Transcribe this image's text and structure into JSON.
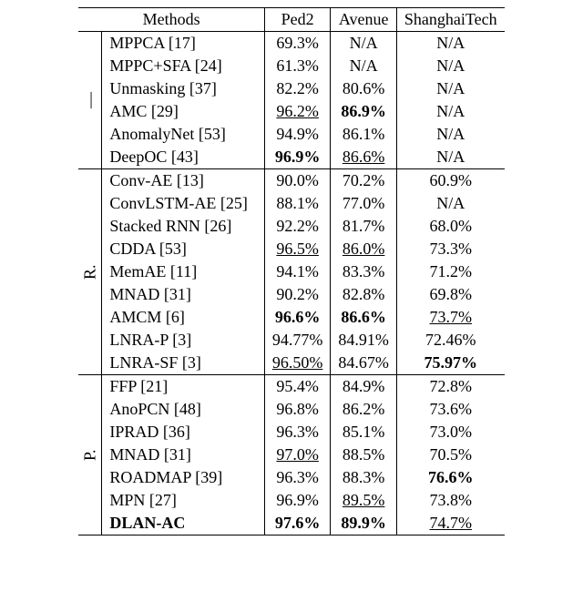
{
  "header": {
    "methods": "Methods",
    "ped2": "Ped2",
    "avenue": "Avenue",
    "shanghaitech": "ShanghaiTech"
  },
  "groups": [
    {
      "label": "—",
      "rows": [
        {
          "method": "MPPCA [17]",
          "ped2": "69.3%",
          "avenue": "N/A",
          "shanghaitech": "N/A"
        },
        {
          "method": "MPPC+SFA [24]",
          "ped2": "61.3%",
          "avenue": "N/A",
          "shanghaitech": "N/A"
        },
        {
          "method": "Unmasking [37]",
          "ped2": "82.2%",
          "avenue": "80.6%",
          "shanghaitech": "N/A"
        },
        {
          "method": "AMC [29]",
          "ped2": "96.2%",
          "ped2_underline": true,
          "avenue": "86.9%",
          "avenue_bold": true,
          "shanghaitech": "N/A"
        },
        {
          "method": "AnomalyNet [53]",
          "ped2": "94.9%",
          "avenue": "86.1%",
          "shanghaitech": "N/A"
        },
        {
          "method": "DeepOC [43]",
          "ped2": "96.9%",
          "ped2_bold": true,
          "avenue": "86.6%",
          "avenue_underline": true,
          "shanghaitech": "N/A"
        }
      ]
    },
    {
      "label": "R.",
      "rows": [
        {
          "method": "Conv-AE [13]",
          "ped2": "90.0%",
          "avenue": "70.2%",
          "shanghaitech": "60.9%"
        },
        {
          "method": "ConvLSTM-AE [25]",
          "ped2": "88.1%",
          "avenue": "77.0%",
          "shanghaitech": "N/A"
        },
        {
          "method": "Stacked RNN [26]",
          "ped2": "92.2%",
          "avenue": "81.7%",
          "shanghaitech": "68.0%"
        },
        {
          "method": "CDDA [53]",
          "ped2": "96.5%",
          "ped2_underline": true,
          "avenue": "86.0%",
          "avenue_underline": true,
          "shanghaitech": "73.3%"
        },
        {
          "method": "MemAE [11]",
          "ped2": "94.1%",
          "avenue": "83.3%",
          "shanghaitech": "71.2%"
        },
        {
          "method": "MNAD [31]",
          "ped2": "90.2%",
          "avenue": "82.8%",
          "shanghaitech": "69.8%"
        },
        {
          "method": "AMCM [6]",
          "ped2": "96.6%",
          "ped2_bold": true,
          "avenue": "86.6%",
          "avenue_bold": true,
          "shanghaitech": "73.7%",
          "shanghaitech_underline": true
        },
        {
          "method": "LNRA-P [3]",
          "ped2": "94.77%",
          "avenue": "84.91%",
          "shanghaitech": "72.46%"
        },
        {
          "method": "LNRA-SF [3]",
          "ped2": "96.50%",
          "ped2_underline": true,
          "avenue": "84.67%",
          "shanghaitech": "75.97%",
          "shanghaitech_bold": true
        }
      ]
    },
    {
      "label": "P.",
      "rows": [
        {
          "method": "FFP [21]",
          "ped2": "95.4%",
          "avenue": "84.9%",
          "shanghaitech": "72.8%"
        },
        {
          "method": "AnoPCN [48]",
          "ped2": "96.8%",
          "avenue": "86.2%",
          "shanghaitech": "73.6%"
        },
        {
          "method": "IPRAD [36]",
          "ped2": "96.3%",
          "avenue": "85.1%",
          "shanghaitech": "73.0%"
        },
        {
          "method": "MNAD [31]",
          "ped2": "97.0%",
          "ped2_underline": true,
          "avenue": "88.5%",
          "shanghaitech": "70.5%"
        },
        {
          "method": "ROADMAP [39]",
          "ped2": "96.3%",
          "avenue": "88.3%",
          "shanghaitech": "76.6%",
          "shanghaitech_bold": true
        },
        {
          "method": "MPN [27]",
          "ped2": "96.9%",
          "avenue": "89.5%",
          "avenue_underline": true,
          "shanghaitech": "73.8%"
        },
        {
          "method": "DLAN-AC",
          "method_bold": true,
          "ped2": "97.6%",
          "ped2_bold": true,
          "avenue": "89.9%",
          "avenue_bold": true,
          "shanghaitech": "74.7%",
          "shanghaitech_underline": true
        }
      ]
    }
  ]
}
